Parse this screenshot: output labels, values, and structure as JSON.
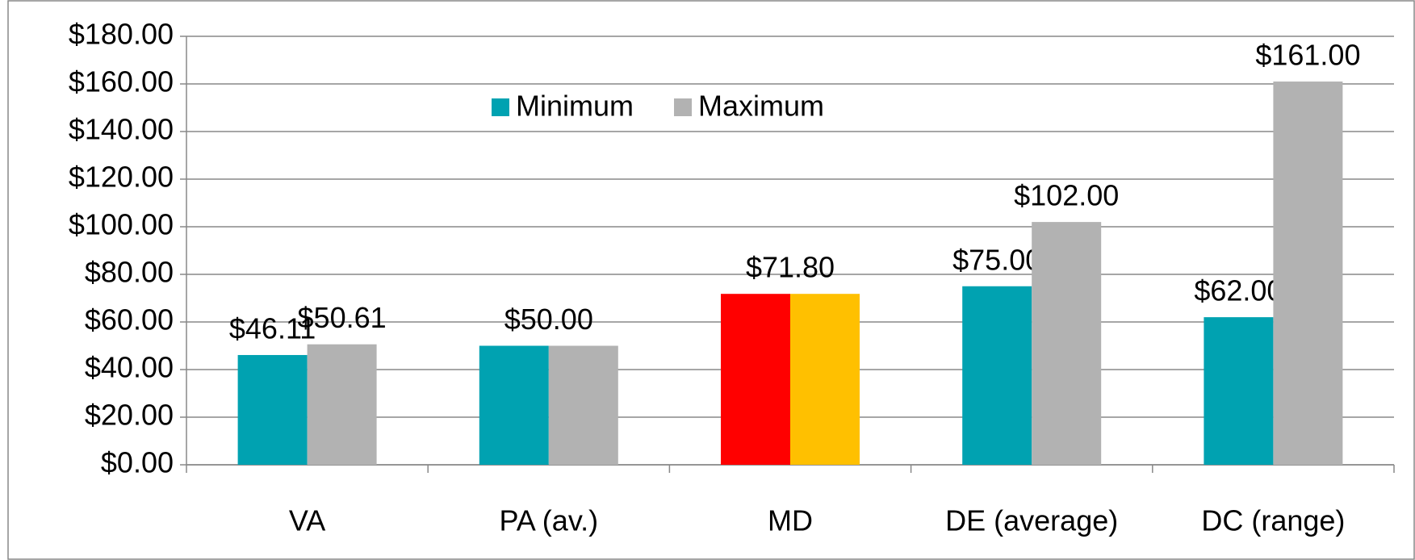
{
  "chart_data": {
    "type": "bar",
    "categories": [
      "VA",
      "PA (av.)",
      "MD",
      "DE (average)",
      "DC (range)"
    ],
    "series": [
      {
        "name": "Minimum",
        "color": "#00a2b1",
        "colors": [
          "#00a2b1",
          "#00a2b1",
          "#ff0000",
          "#00a2b1",
          "#00a2b1"
        ],
        "values": [
          46.11,
          50,
          71.8,
          75,
          62
        ],
        "value_labels": [
          "$46.11",
          "$50.00",
          "$71.80",
          "$75.00",
          "$62.00"
        ]
      },
      {
        "name": "Maximum",
        "color": "#b2b2b2",
        "colors": [
          "#b2b2b2",
          "#b2b2b2",
          "#ffc000",
          "#b2b2b2",
          "#b2b2b2"
        ],
        "values": [
          50.61,
          50,
          71.8,
          102,
          161
        ],
        "value_labels": [
          "$50.61",
          null,
          null,
          "$102.00",
          "$161.00"
        ]
      }
    ],
    "ylim": [
      0,
      180
    ],
    "yticks": [
      {
        "value": 0,
        "label": "$0.00"
      },
      {
        "value": 20,
        "label": "$20.00"
      },
      {
        "value": 40,
        "label": "$40.00"
      },
      {
        "value": 60,
        "label": "$60.00"
      },
      {
        "value": 80,
        "label": "$80.00"
      },
      {
        "value": 100,
        "label": "$100.00"
      },
      {
        "value": 120,
        "label": "$120.00"
      },
      {
        "value": 140,
        "label": "$140.00"
      },
      {
        "value": 160,
        "label": "$160.00"
      },
      {
        "value": 180,
        "label": "$180.00"
      }
    ],
    "grid": true,
    "legend": "top"
  }
}
